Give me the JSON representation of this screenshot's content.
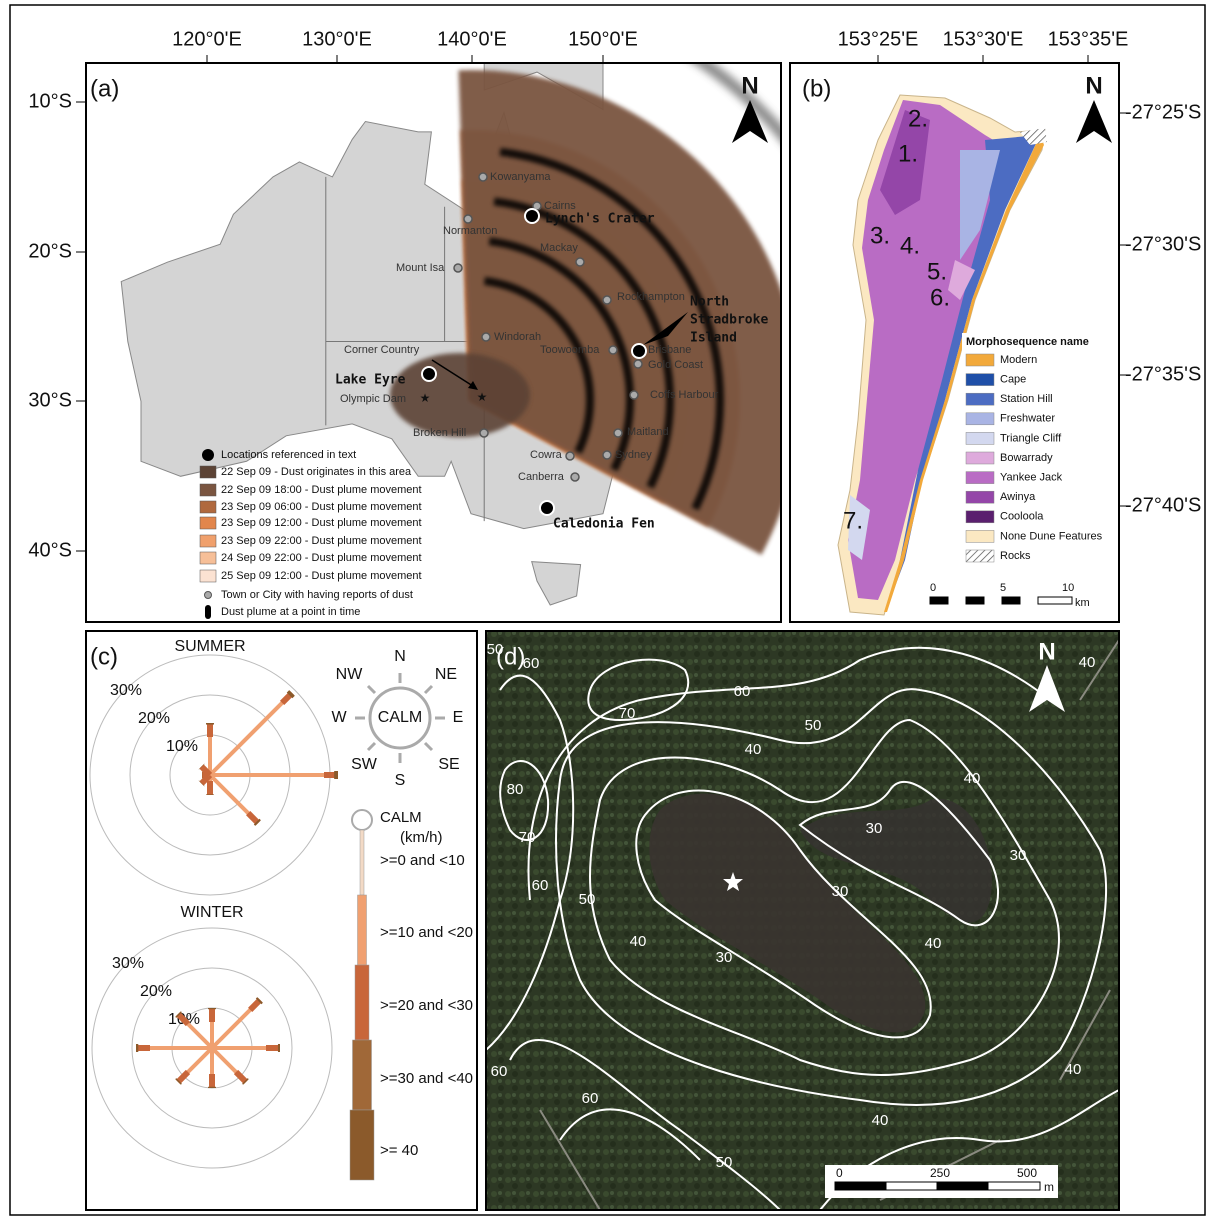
{
  "panel_a": {
    "label": "(a)",
    "north": "N",
    "lon_ticks": [
      "120°0'E",
      "130°0'E",
      "140°0'E",
      "150°0'E"
    ],
    "lat_ticks": [
      "10°S",
      "20°S",
      "30°S",
      "40°S"
    ],
    "towns": [
      "Kowanyama",
      "Cairns",
      "Normanton",
      "Mackay",
      "Mount Isa",
      "Rockhampton",
      "Windorah",
      "Toowoomba",
      "Brisbane",
      "Gold Coast",
      "Coffs Harbour",
      "Broken Hill",
      "Maitland",
      "Sydney",
      "Cowra",
      "Canberra"
    ],
    "corner_country": "Corner Country",
    "olympic_dam": "Olympic Dam",
    "sites": [
      "Lynch's Crater",
      "Lake Eyre",
      "Caledonia Fen"
    ],
    "stradbroke": [
      "North",
      "Stradbroke",
      "Island"
    ],
    "legend": [
      {
        "label": "Locations referenced in text",
        "color": "#000000"
      },
      {
        "label": "22 Sep 09 - Dust originates in this area",
        "color": "#5c4335"
      },
      {
        "label": "22 Sep 09 18:00 - Dust plume movement",
        "color": "#7a5540"
      },
      {
        "label": "23 Sep 09 06:00 - Dust plume movement",
        "color": "#b0693e"
      },
      {
        "label": "23 Sep 09 12:00 - Dust plume movement",
        "color": "#e2864c"
      },
      {
        "label": "23 Sep 09 22:00 - Dust plume movement",
        "color": "#f0a06c"
      },
      {
        "label": "24 Sep 09 22:00 - Dust plume movement",
        "color": "#f6bf98"
      },
      {
        "label": "25 Sep 09 12:00 - Dust plume movement",
        "color": "#fbe2d2"
      },
      {
        "label": "Town or City with having reports of dust",
        "color": "#888888"
      },
      {
        "label": "Dust plume at a point in time",
        "color": "#000000"
      }
    ]
  },
  "panel_b": {
    "label": "(b)",
    "north": "N",
    "lon_ticks": [
      "153°25'E",
      "153°30'E",
      "153°35'E"
    ],
    "lat_ticks": [
      "-27°25'S",
      "-27°30'S",
      "-27°35'S",
      "-27°40'S"
    ],
    "sites": [
      "2.",
      "1.",
      "3.",
      "4.",
      "5.",
      "6.",
      "7."
    ],
    "legend_title": "Morphosequence name",
    "legend": [
      {
        "name": "Modern",
        "color": "#f2a93b"
      },
      {
        "name": "Cape",
        "color": "#1f4fa8"
      },
      {
        "name": "Station Hill",
        "color": "#4c6cc2"
      },
      {
        "name": "Freshwater",
        "color": "#a9b4e4"
      },
      {
        "name": "Triangle Cliff",
        "color": "#d3d8ef"
      },
      {
        "name": "Bowarrady",
        "color": "#deaadc"
      },
      {
        "name": "Yankee Jack",
        "color": "#b96cc4"
      },
      {
        "name": "Awinya",
        "color": "#9446a8"
      },
      {
        "name": "Cooloola",
        "color": "#5a1f6e"
      },
      {
        "name": "None Dune Features",
        "color": "#fbe8c2"
      },
      {
        "name": "Rocks",
        "color": "#ffffff"
      }
    ],
    "scale": [
      "0",
      "5",
      "10"
    ],
    "scale_unit": "km"
  },
  "panel_c": {
    "label": "(c)",
    "compass": [
      "N",
      "NE",
      "E",
      "SE",
      "S",
      "SW",
      "W",
      "NW"
    ],
    "calm": "CALM",
    "roses": [
      {
        "title": "SUMMER",
        "rings": [
          {
            "value": 10,
            "label": "10%"
          },
          {
            "value": 20,
            "label": "20%"
          },
          {
            "value": 30,
            "label": "30%"
          }
        ],
        "values": [
          13,
          29,
          32,
          17,
          5,
          3,
          2,
          3
        ]
      },
      {
        "title": "WINTER",
        "rings": [
          {
            "value": 10,
            "label": "10%"
          },
          {
            "value": 20,
            "label": "20%"
          },
          {
            "value": 30,
            "label": "30%"
          }
        ],
        "values": [
          10,
          17,
          17,
          12,
          10,
          12,
          19,
          12
        ]
      }
    ],
    "legend_title": "CALM",
    "legend_unit": "(km/h)",
    "speed_classes": [
      {
        "label": ">=0 and <10",
        "color": "#f3dac6"
      },
      {
        "label": ">=10 and <20",
        "color": "#f0a070"
      },
      {
        "label": ">=20 and <30",
        "color": "#c8663a"
      },
      {
        "label": ">=30 and <40",
        "color": "#a06838"
      },
      {
        "label": ">= 40",
        "color": "#8b5a2b"
      }
    ]
  },
  "panel_d": {
    "label": "(d)",
    "north": "N",
    "contour_labels": [
      50,
      60,
      60,
      70,
      50,
      40,
      40,
      80,
      70,
      30,
      30,
      60,
      50,
      30,
      40,
      40,
      30,
      60,
      60,
      40,
      40,
      50,
      40
    ],
    "scale": [
      "0",
      "250",
      "500"
    ],
    "scale_unit": "m"
  }
}
